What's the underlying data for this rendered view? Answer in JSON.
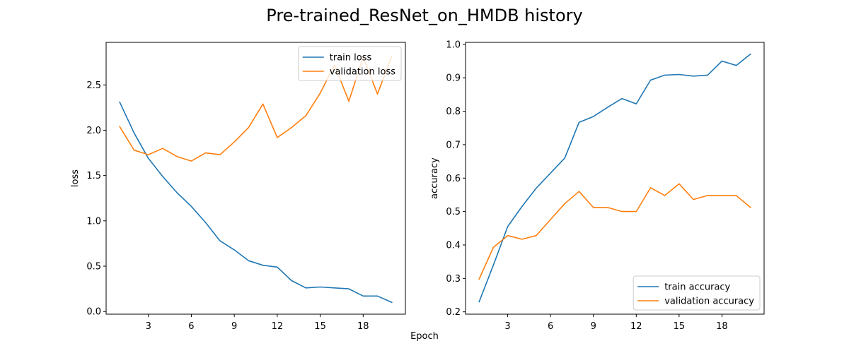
{
  "figure": {
    "title": "Pre-trained_ResNet_on_HMDB history",
    "xlabel": "Epoch"
  },
  "chart_data": [
    {
      "type": "line",
      "ylabel": "loss",
      "xlim": [
        0.05,
        20.95
      ],
      "ylim": [
        -0.03,
        2.97
      ],
      "xticks": [
        3,
        6,
        9,
        12,
        15,
        18
      ],
      "yticks": [
        0.0,
        0.5,
        1.0,
        1.5,
        2.0,
        2.5
      ],
      "ytick_decimals": 1,
      "grid": false,
      "legend_loc": "upper right",
      "x": [
        1,
        2,
        3,
        4,
        5,
        6,
        7,
        8,
        9,
        10,
        11,
        12,
        13,
        14,
        15,
        16,
        17,
        18,
        19,
        20
      ],
      "series": [
        {
          "name": "train loss",
          "color": "#1f77b4",
          "values": [
            2.31,
            1.97,
            1.69,
            1.49,
            1.31,
            1.16,
            0.98,
            0.78,
            0.68,
            0.56,
            0.51,
            0.49,
            0.34,
            0.26,
            0.27,
            0.26,
            0.25,
            0.17,
            0.17,
            0.1
          ]
        },
        {
          "name": "validation loss",
          "color": "#ff7f0e",
          "values": [
            2.04,
            1.78,
            1.73,
            1.8,
            1.71,
            1.66,
            1.75,
            1.73,
            1.87,
            2.03,
            2.29,
            1.92,
            2.03,
            2.16,
            2.41,
            2.72,
            2.32,
            2.81,
            2.4,
            2.82
          ]
        }
      ]
    },
    {
      "type": "line",
      "ylabel": "accuracy",
      "xlim": [
        0.05,
        20.95
      ],
      "ylim": [
        0.193,
        1.006
      ],
      "xticks": [
        3,
        6,
        9,
        12,
        15,
        18
      ],
      "yticks": [
        0.2,
        0.3,
        0.4,
        0.5,
        0.6,
        0.7,
        0.8,
        0.9,
        1.0
      ],
      "ytick_decimals": 1,
      "grid": false,
      "legend_loc": "lower right",
      "x": [
        1,
        2,
        3,
        4,
        5,
        6,
        7,
        8,
        9,
        10,
        11,
        12,
        13,
        14,
        15,
        16,
        17,
        18,
        19,
        20
      ],
      "series": [
        {
          "name": "train accuracy",
          "color": "#1f77b4",
          "values": [
            0.23,
            0.34,
            0.455,
            0.515,
            0.57,
            0.615,
            0.66,
            0.767,
            0.784,
            0.812,
            0.838,
            0.822,
            0.893,
            0.908,
            0.91,
            0.905,
            0.908,
            0.95,
            0.937,
            0.971
          ]
        },
        {
          "name": "validation accuracy",
          "color": "#ff7f0e",
          "values": [
            0.298,
            0.393,
            0.428,
            0.417,
            0.428,
            0.476,
            0.524,
            0.56,
            0.512,
            0.512,
            0.5,
            0.5,
            0.571,
            0.548,
            0.583,
            0.536,
            0.548,
            0.548,
            0.548,
            0.512
          ]
        }
      ]
    }
  ]
}
